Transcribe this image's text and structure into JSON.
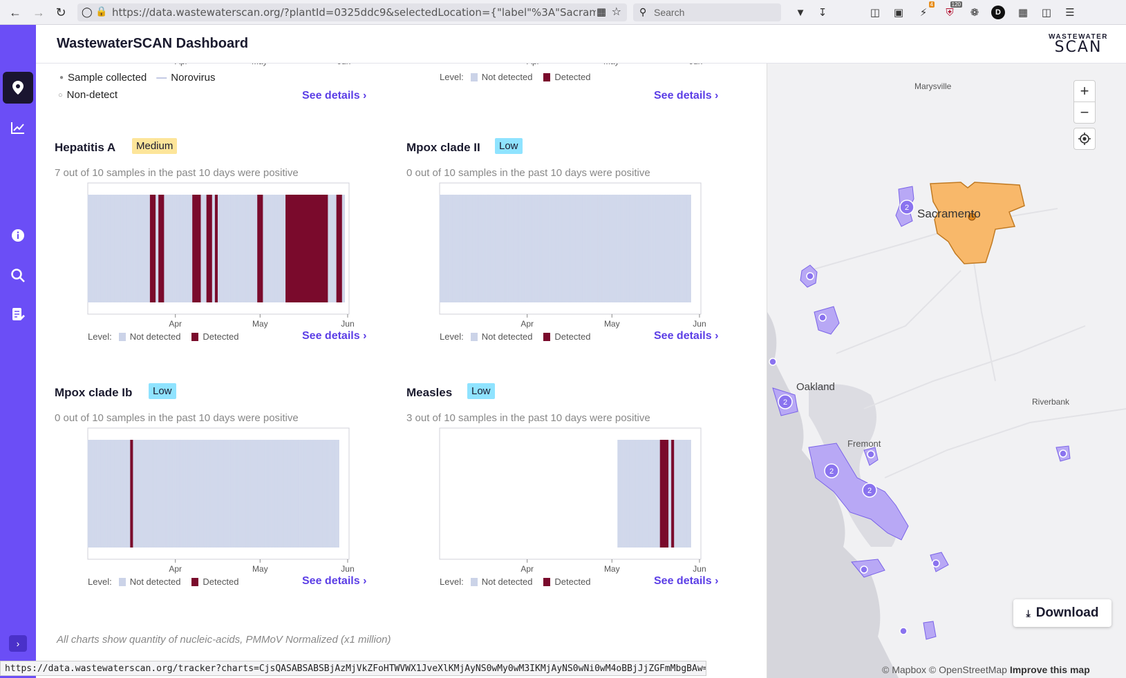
{
  "browser": {
    "url": "https://data.wastewaterscan.org/?plantId=0325ddc9&selectedLocation={\"label\"%3A\"Sacramento, C",
    "search_placeholder": "Search",
    "badge_count_1": "4",
    "badge_count_2": "120"
  },
  "header": {
    "title": "WastewaterSCAN Dashboard",
    "logo_top": "WASTEWATER",
    "logo_bottom": "SCAN"
  },
  "top_partial": {
    "left_axis": [
      "Apr",
      "May",
      "Jun"
    ],
    "right_axis": [
      "Apr",
      "May",
      "Jun"
    ],
    "legend_sample_collected": "Sample collected",
    "legend_norovirus": "Norovirus",
    "legend_non_detect": "Non-detect",
    "level_label": "Level:",
    "not_detected": "Not detected",
    "detected": "Detected",
    "see_details": "See details"
  },
  "cards": [
    {
      "title": "Hepatitis A",
      "level": "Medium",
      "level_color": "#fde59a",
      "subtitle": "7 out of 10 samples in the past 10 days were positive",
      "axis": [
        "Apr",
        "May",
        "Jun"
      ],
      "level_label": "Level:",
      "not_detected": "Not detected",
      "detected": "Detected",
      "see_details": "See details"
    },
    {
      "title": "Mpox clade II",
      "level": "Low",
      "level_color": "#8fe3ff",
      "subtitle": "0 out of 10 samples in the past 10 days were positive",
      "axis": [
        "Apr",
        "May",
        "Jun"
      ],
      "level_label": "Level:",
      "not_detected": "Not detected",
      "detected": "Detected",
      "see_details": "See details"
    },
    {
      "title": "Mpox clade Ib",
      "level": "Low",
      "level_color": "#8fe3ff",
      "subtitle": "0 out of 10 samples in the past 10 days were positive",
      "axis": [
        "Apr",
        "May",
        "Jun"
      ],
      "level_label": "Level:",
      "not_detected": "Not detected",
      "detected": "Detected",
      "see_details": "See details"
    },
    {
      "title": "Measles",
      "level": "Low",
      "level_color": "#8fe3ff",
      "subtitle": "3 out of 10 samples in the past 10 days were positive",
      "axis": [
        "Apr",
        "May",
        "Jun"
      ],
      "level_label": "Level:",
      "not_detected": "Not detected",
      "detected": "Detected",
      "see_details": "See details"
    }
  ],
  "chart_data": [
    {
      "type": "heatmap",
      "title": "Hepatitis A",
      "x_range": [
        "2025-03-01",
        "2025-06-01"
      ],
      "x_ticks": [
        "Apr",
        "May",
        "Jun"
      ],
      "coverage_start_day": 0,
      "coverage_end_day": 91,
      "detected_ranges_days": [
        [
          22,
          24
        ],
        [
          25,
          27
        ],
        [
          37,
          40
        ],
        [
          42,
          44
        ],
        [
          45,
          46
        ],
        [
          60,
          62
        ],
        [
          70,
          85
        ],
        [
          88,
          90
        ]
      ],
      "colors": {
        "not_detected": "#cbd3e8",
        "detected": "#7a0a2c"
      }
    },
    {
      "type": "heatmap",
      "title": "Mpox clade II",
      "x_range": [
        "2025-03-01",
        "2025-06-01"
      ],
      "x_ticks": [
        "Apr",
        "May",
        "Jun"
      ],
      "coverage_start_day": 0,
      "coverage_end_day": 89,
      "detected_ranges_days": [],
      "colors": {
        "not_detected": "#cbd3e8",
        "detected": "#7a0a2c"
      }
    },
    {
      "type": "heatmap",
      "title": "Mpox clade Ib",
      "x_range": [
        "2025-03-01",
        "2025-06-01"
      ],
      "x_ticks": [
        "Apr",
        "May",
        "Jun"
      ],
      "coverage_start_day": 0,
      "coverage_end_day": 89,
      "detected_ranges_days": [
        [
          15,
          16
        ]
      ],
      "colors": {
        "not_detected": "#cbd3e8",
        "detected": "#7a0a2c"
      }
    },
    {
      "type": "heatmap",
      "title": "Measles",
      "x_range": [
        "2025-03-01",
        "2025-06-01"
      ],
      "x_ticks": [
        "Apr",
        "May",
        "Jun"
      ],
      "coverage_start_day": 63,
      "coverage_end_day": 89,
      "detected_ranges_days": [
        [
          78,
          81
        ],
        [
          82,
          83
        ]
      ],
      "colors": {
        "not_detected": "#cbd3e8",
        "detected": "#7a0a2c"
      }
    }
  ],
  "footnote": "All charts show quantity of nucleic-acids, PMMoV Normalized (x1 million)",
  "map": {
    "labels": {
      "marysville": "Marysville",
      "sacramento": "Sacramento",
      "oakland": "Oakland",
      "riverbank": "Riverbank",
      "fremont": "Fremont"
    },
    "cluster_counts": [
      "2",
      "2",
      "2",
      "2"
    ],
    "zoom_in": "+",
    "zoom_out": "−",
    "download": "Download",
    "attribution_mapbox": "© Mapbox",
    "attribution_osm": "© OpenStreetMap",
    "improve": "Improve this map"
  },
  "statusbar": "https://data.wastewaterscan.org/tracker?charts=CjsQASABSABSBjAzMjVkZFoHTWVWX1JveXlKMjAyNS0wMy0wM3IKMjAyNS0wNi0wM4oBBjJjZGFmMbgBAw=="
}
